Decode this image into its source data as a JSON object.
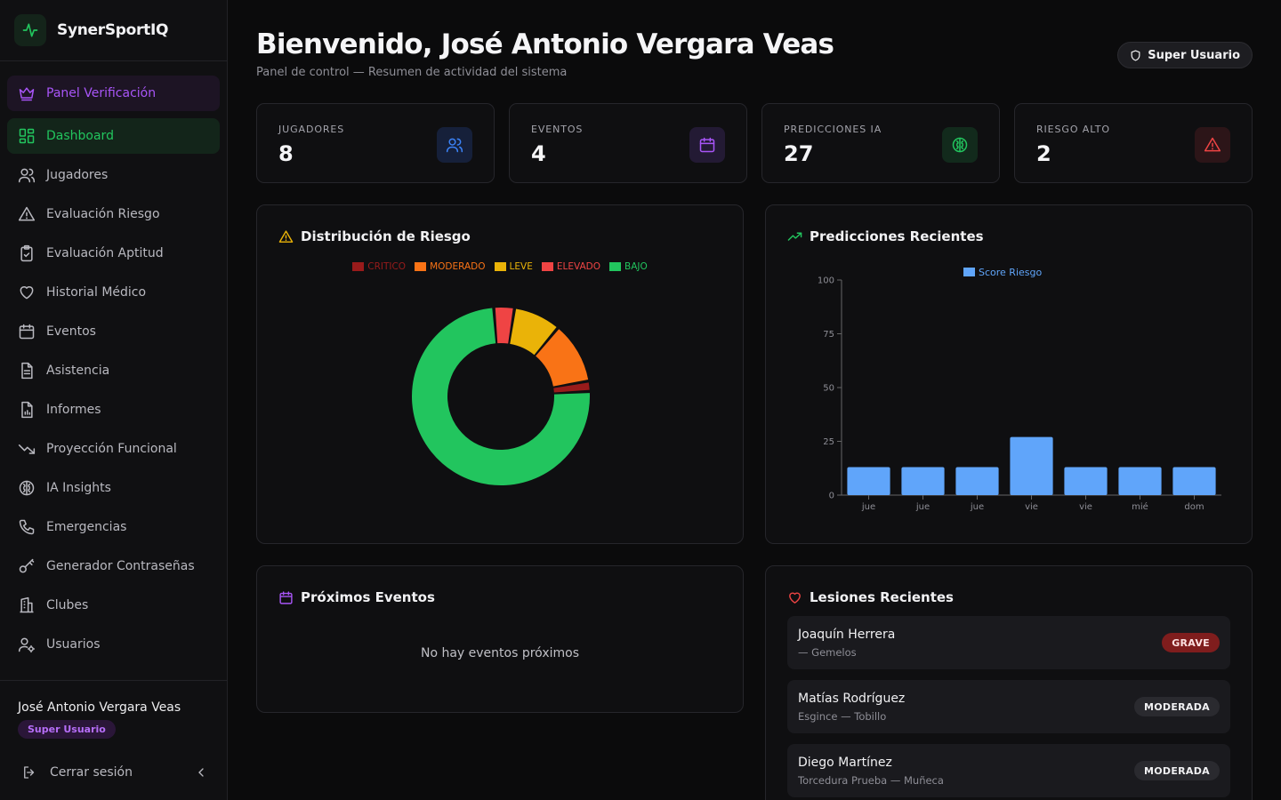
{
  "brand": {
    "name": "SynerSportIQ",
    "icon": "pulse-icon"
  },
  "sidebar": {
    "items": [
      {
        "label": "Panel Verificación",
        "icon": "crown-icon",
        "state": "verify"
      },
      {
        "label": "Dashboard",
        "icon": "dashboard-icon",
        "state": "active"
      },
      {
        "label": "Jugadores",
        "icon": "users-icon"
      },
      {
        "label": "Evaluación Riesgo",
        "icon": "warning-icon"
      },
      {
        "label": "Evaluación Aptitud",
        "icon": "clipboard-check-icon"
      },
      {
        "label": "Historial Médico",
        "icon": "heart-icon"
      },
      {
        "label": "Eventos",
        "icon": "calendar-icon"
      },
      {
        "label": "Asistencia",
        "icon": "document-icon"
      },
      {
        "label": "Informes",
        "icon": "report-icon"
      },
      {
        "label": "Proyección Funcional",
        "icon": "trending-down-icon"
      },
      {
        "label": "IA Insights",
        "icon": "brain-icon"
      },
      {
        "label": "Emergencias",
        "icon": "phone-icon"
      },
      {
        "label": "Generador Contraseñas",
        "icon": "key-icon"
      },
      {
        "label": "Clubes",
        "icon": "building-icon"
      },
      {
        "label": "Usuarios",
        "icon": "user-gear-icon"
      }
    ],
    "user": {
      "name": "José Antonio Vergara Veas",
      "role": "Super Usuario"
    },
    "logout_label": "Cerrar sesión"
  },
  "header": {
    "title": "Bienvenido, José Antonio Vergara Veas",
    "subtitle": "Panel de control — Resumen de actividad del sistema",
    "role_badge": "Super Usuario"
  },
  "stats": [
    {
      "label": "JUGADORES",
      "value": "8",
      "icon": "users-icon",
      "color": "#3b82f6"
    },
    {
      "label": "EVENTOS",
      "value": "4",
      "icon": "calendar-icon",
      "color": "#a855f7"
    },
    {
      "label": "PREDICCIONES IA",
      "value": "27",
      "icon": "brain-icon",
      "color": "#22c55e"
    },
    {
      "label": "RIESGO ALTO",
      "value": "2",
      "icon": "warning-icon",
      "color": "#ef4444"
    }
  ],
  "risk_card": {
    "title": "Distribución de Riesgo"
  },
  "predictions_card": {
    "title": "Predicciones Recientes"
  },
  "events_card": {
    "title": "Próximos Eventos",
    "empty": "No hay eventos próximos"
  },
  "injuries_card": {
    "title": "Lesiones Recientes",
    "items": [
      {
        "name": "Joaquín Herrera",
        "detail": "— Gemelos",
        "severity": "GRAVE",
        "level": "grave"
      },
      {
        "name": "Matías Rodríguez",
        "detail": "Esgince — Tobillo",
        "severity": "MODERADA",
        "level": "moderada"
      },
      {
        "name": "Diego Martínez",
        "detail": "Torcedura Prueba — Muñeca",
        "severity": "MODERADA",
        "level": "moderada"
      }
    ]
  },
  "chart_data": [
    {
      "type": "pie",
      "style": "donut",
      "categories": [
        "CRITICO",
        "MODERADO",
        "LEVE",
        "ELEVADO",
        "BAJO"
      ],
      "values": [
        0.5,
        3,
        2.3,
        1,
        20
      ],
      "colors": [
        "#991b1b",
        "#f97316",
        "#eab308",
        "#ef4444",
        "#22c55e"
      ],
      "legend": "top"
    },
    {
      "type": "bar",
      "categories": [
        "jue",
        "jue",
        "jue",
        "vie",
        "vie",
        "mié",
        "dom"
      ],
      "series": [
        {
          "name": "Score Riesgo",
          "values": [
            13,
            13,
            13,
            27,
            13,
            13,
            13
          ],
          "color": "#60a5fa"
        }
      ],
      "ylim": [
        0,
        100
      ],
      "yticks": [
        0,
        25,
        50,
        75,
        100
      ],
      "legend": "top"
    }
  ]
}
